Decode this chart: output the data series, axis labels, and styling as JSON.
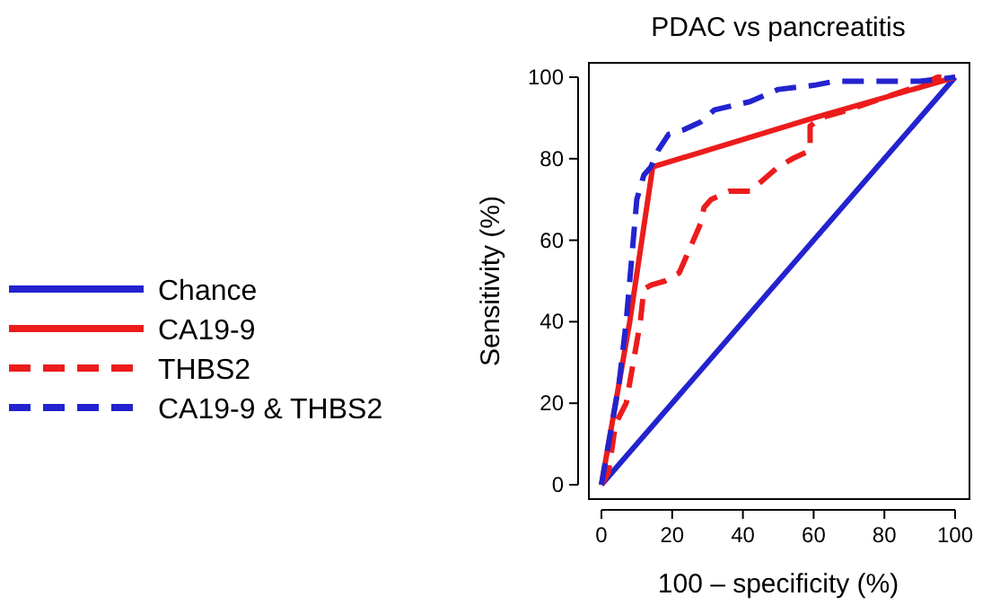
{
  "chart_data": {
    "type": "line",
    "title": "PDAC vs pancreatitis",
    "xlabel": "100 – specificity (%)",
    "ylabel": "Sensitivity (%)",
    "xlim": [
      0,
      100
    ],
    "ylim": [
      0,
      100
    ],
    "xticks": [
      0,
      20,
      40,
      60,
      80,
      100
    ],
    "yticks": [
      0,
      20,
      40,
      60,
      80,
      100
    ],
    "grid": false,
    "legend": "left",
    "series": [
      {
        "name": "Chance",
        "color": "#2323cf",
        "line_style": "solid",
        "x": [
          0,
          100
        ],
        "values": [
          0,
          100
        ]
      },
      {
        "name": "CA19-9",
        "color": "#ec1c1c",
        "line_style": "solid",
        "x": [
          0,
          3,
          8,
          14.5,
          60,
          100
        ],
        "values": [
          0,
          15,
          40,
          78,
          90,
          100
        ]
      },
      {
        "name": "THBS2",
        "color": "#ec1c1c",
        "line_style": "dashed",
        "x": [
          0,
          2,
          4,
          7,
          9,
          11,
          12,
          14,
          18,
          22,
          24,
          26,
          28,
          29,
          31,
          36,
          42,
          46,
          50,
          54,
          59,
          59,
          62,
          70,
          80,
          90,
          95,
          100
        ],
        "values": [
          0,
          3,
          15,
          20,
          30,
          40,
          48,
          49,
          50,
          52,
          56,
          60,
          64,
          68,
          70,
          72,
          72,
          75,
          78,
          80,
          82,
          88,
          90,
          92,
          95,
          98,
          100,
          100
        ]
      },
      {
        "name": "CA19-9 & THBS2",
        "color": "#2323cf",
        "line_style": "dashed",
        "x": [
          0,
          2,
          5,
          7,
          9,
          10,
          12,
          14,
          16,
          19,
          23,
          28,
          32,
          42,
          50,
          60,
          66,
          75,
          90,
          100
        ],
        "values": [
          0,
          10,
          25,
          40,
          60,
          70,
          76,
          78,
          82,
          86,
          87,
          89,
          92,
          94,
          97,
          98,
          99,
          99,
          99,
          100
        ]
      }
    ]
  }
}
